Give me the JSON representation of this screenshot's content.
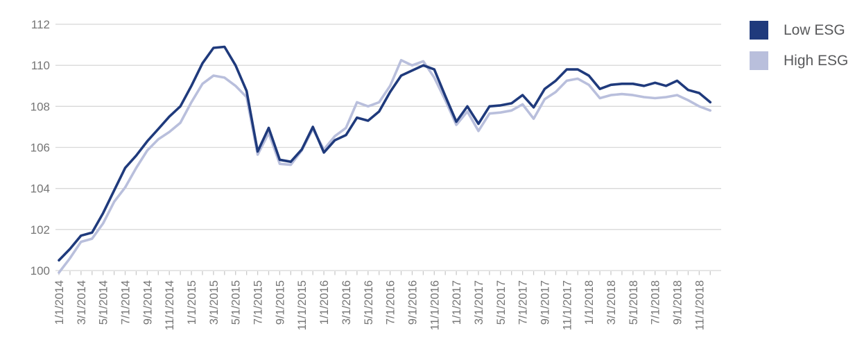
{
  "legend": {
    "items": [
      {
        "label": "Low ESG",
        "color": "#1F3A7C"
      },
      {
        "label": "High ESG",
        "color": "#B9BFDC"
      }
    ]
  },
  "chart_data": {
    "type": "line",
    "title": "",
    "xlabel": "",
    "ylabel": "",
    "ylim": [
      100,
      112
    ],
    "y_ticks": [
      100,
      102,
      104,
      106,
      108,
      110,
      112
    ],
    "grid": "horizontal",
    "legend_position": "top-right",
    "points_per_tick_label": 2,
    "x_tick_labels": [
      "1/1/2014",
      "3/1/2014",
      "5/1/2014",
      "7/1/2014",
      "9/1/2014",
      "11/1/2014",
      "1/1/2015",
      "3/1/2015",
      "5/1/2015",
      "7/1/2015",
      "9/1/2015",
      "11/1/2015",
      "1/1/2016",
      "3/1/2016",
      "5/1/2016",
      "7/1/2016",
      "9/1/2016",
      "11/1/2016",
      "1/1/2017",
      "3/1/2017",
      "5/1/2017",
      "7/1/2017",
      "9/1/2017",
      "11/1/2017",
      "1/1/2018",
      "3/1/2018",
      "5/1/2018",
      "7/1/2018",
      "9/1/2018",
      "11/1/2018"
    ],
    "series": [
      {
        "name": "Low ESG",
        "color": "#1F3A7C",
        "values": [
          100.5,
          101.05,
          101.7,
          101.85,
          102.8,
          103.9,
          105.0,
          105.6,
          106.3,
          106.9,
          107.5,
          108.0,
          109.0,
          110.1,
          110.85,
          110.9,
          110.0,
          108.75,
          105.8,
          106.95,
          105.4,
          105.3,
          105.9,
          107.0,
          105.75,
          106.35,
          106.6,
          107.45,
          107.3,
          107.75,
          108.7,
          109.5,
          109.75,
          110.0,
          109.8,
          108.5,
          107.25,
          108.0,
          107.15,
          108.0,
          108.05,
          108.15,
          108.55,
          107.95,
          108.85,
          109.25,
          109.8,
          109.8,
          109.5,
          108.85,
          109.05,
          109.1,
          109.1,
          109.0,
          109.15,
          109.0,
          109.25,
          108.8,
          108.65,
          108.2
        ]
      },
      {
        "name": "High ESG",
        "color": "#B9BFDC",
        "values": [
          99.9,
          100.6,
          101.4,
          101.55,
          102.3,
          103.35,
          104.05,
          105.0,
          105.85,
          106.4,
          106.75,
          107.2,
          108.2,
          109.1,
          109.5,
          109.4,
          109.0,
          108.45,
          105.65,
          106.7,
          105.2,
          105.15,
          105.85,
          106.9,
          105.9,
          106.55,
          106.95,
          108.2,
          108.0,
          108.2,
          109.0,
          110.25,
          110.0,
          110.2,
          109.4,
          108.3,
          107.1,
          107.75,
          106.8,
          107.65,
          107.7,
          107.8,
          108.1,
          107.4,
          108.35,
          108.7,
          109.25,
          109.35,
          109.05,
          108.4,
          108.55,
          108.6,
          108.55,
          108.45,
          108.4,
          108.45,
          108.55,
          108.3,
          108.0,
          107.8
        ]
      }
    ],
    "colors": {
      "gridline": "#D8D8D8",
      "tick": "#C9C9C9",
      "axis_text": "#757575",
      "legend_text": "#58595B"
    }
  }
}
